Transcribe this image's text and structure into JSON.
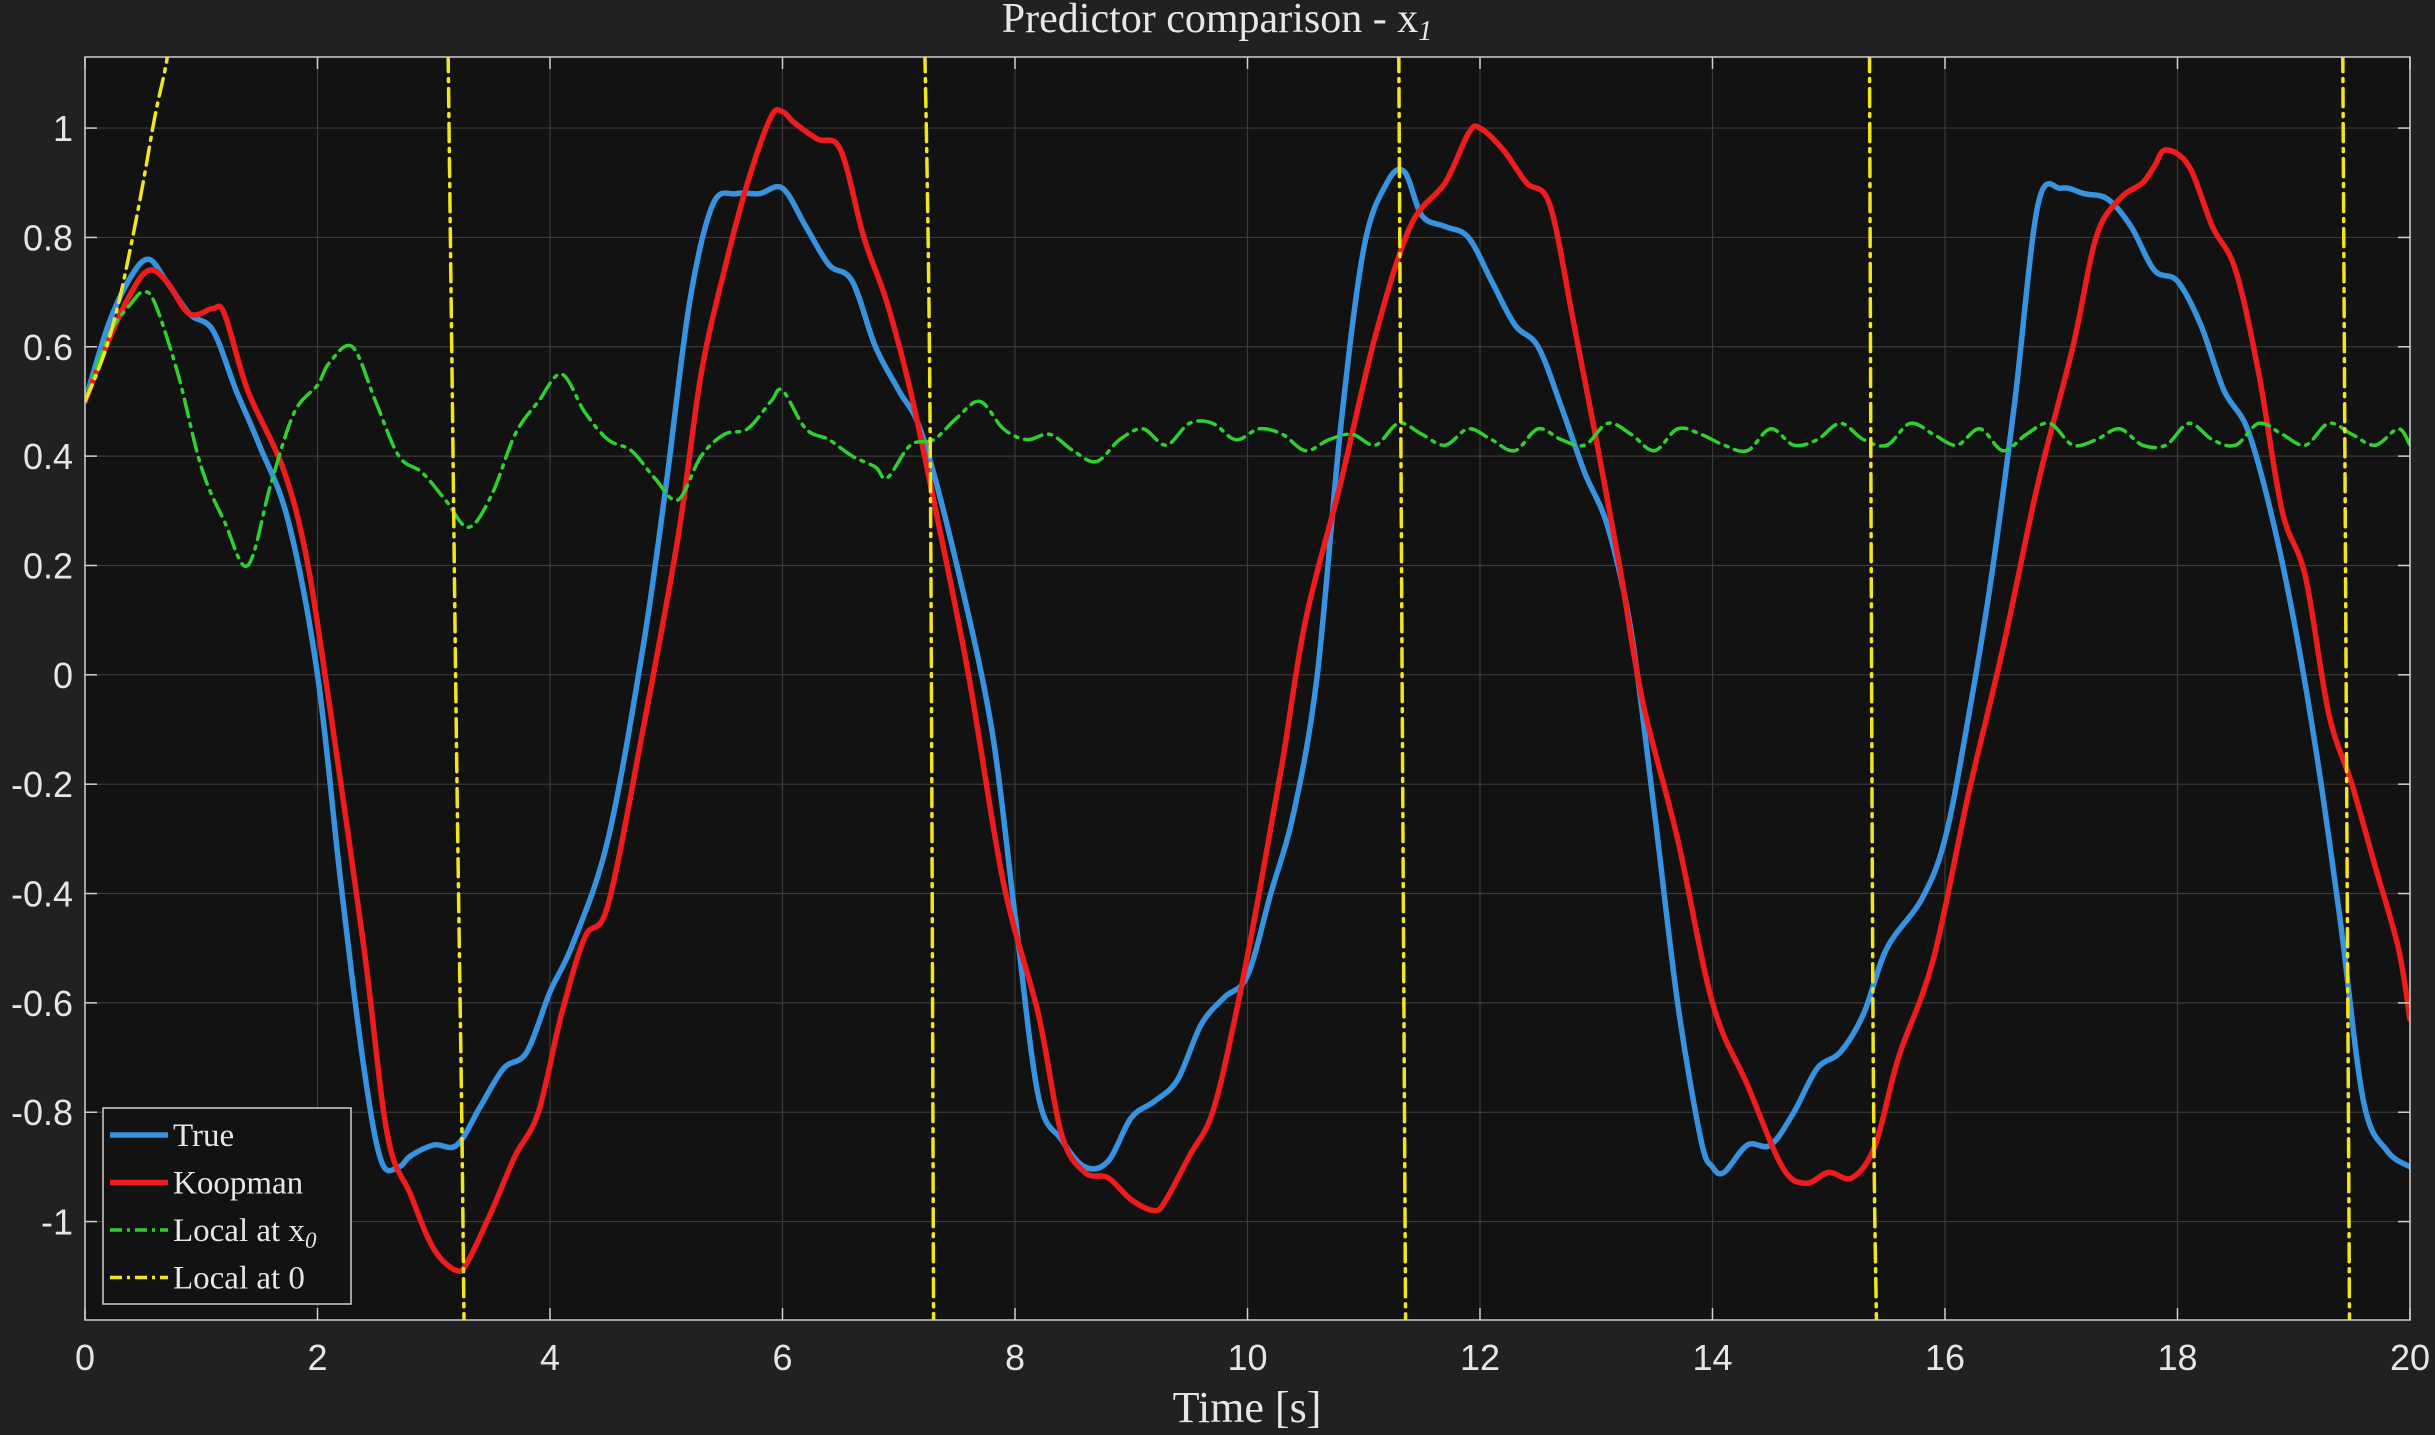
{
  "chart_data": {
    "type": "line",
    "title": "Predictor comparison - x",
    "title_subscript": "1",
    "xlabel": "Time [s]",
    "ylabel": "",
    "xlim": [
      0,
      20
    ],
    "ylim": [
      -1.18,
      1.13
    ],
    "xticks": [
      0,
      2,
      4,
      6,
      8,
      10,
      12,
      14,
      16,
      18,
      20
    ],
    "xtick_labels": [
      "0",
      "2",
      "4",
      "6",
      "8",
      "10",
      "12",
      "14",
      "16",
      "18",
      "20"
    ],
    "yticks": [
      -1,
      -0.8,
      -0.6,
      -0.4,
      -0.2,
      0,
      0.2,
      0.4,
      0.6,
      0.8,
      1
    ],
    "ytick_labels": [
      "-1",
      "-0.8",
      "-0.6",
      "-0.4",
      "-0.2",
      "0",
      "0.2",
      "0.4",
      "0.6",
      "0.8",
      "1"
    ],
    "grid": true,
    "legend_position": "bottom-left",
    "colors": {
      "figure_bg": "#212121",
      "axes_bg": "#121212",
      "grid": "#3a3a3a",
      "axes_edge": "#cfcfcf",
      "text": "#e6e6e6"
    },
    "series": [
      {
        "name": "True",
        "color": "#3792e0",
        "dash": "solid",
        "x": [
          0,
          0.2,
          0.4,
          0.55,
          0.7,
          0.9,
          1.1,
          1.3,
          1.5,
          1.75,
          2.0,
          2.2,
          2.4,
          2.55,
          2.7,
          2.8,
          3.0,
          3.2,
          3.4,
          3.6,
          3.8,
          4.0,
          4.2,
          4.5,
          4.8,
          5.0,
          5.2,
          5.4,
          5.6,
          5.8,
          6.0,
          6.2,
          6.4,
          6.6,
          6.8,
          7.0,
          7.2,
          7.5,
          7.8,
          8.0,
          8.2,
          8.4,
          8.6,
          8.8,
          9.0,
          9.2,
          9.4,
          9.6,
          9.8,
          10.0,
          10.2,
          10.4,
          10.6,
          10.8,
          11.0,
          11.2,
          11.35,
          11.5,
          11.7,
          11.9,
          12.1,
          12.3,
          12.5,
          12.7,
          12.9,
          13.1,
          13.3,
          13.5,
          13.7,
          13.9,
          14.0,
          14.1,
          14.3,
          14.5,
          14.7,
          14.9,
          15.1,
          15.3,
          15.5,
          15.8,
          16.0,
          16.2,
          16.4,
          16.6,
          16.8,
          17.0,
          17.2,
          17.4,
          17.6,
          17.8,
          18.0,
          18.2,
          18.4,
          18.6,
          18.8,
          19.0,
          19.2,
          19.4,
          19.6,
          19.8,
          20.0
        ],
        "y": [
          0.5,
          0.64,
          0.73,
          0.76,
          0.72,
          0.66,
          0.63,
          0.52,
          0.42,
          0.28,
          0.0,
          -0.38,
          -0.72,
          -0.89,
          -0.9,
          -0.88,
          -0.86,
          -0.86,
          -0.79,
          -0.72,
          -0.69,
          -0.58,
          -0.49,
          -0.3,
          0.05,
          0.35,
          0.68,
          0.86,
          0.88,
          0.88,
          0.89,
          0.82,
          0.75,
          0.72,
          0.6,
          0.52,
          0.44,
          0.2,
          -0.1,
          -0.44,
          -0.77,
          -0.85,
          -0.9,
          -0.89,
          -0.81,
          -0.78,
          -0.74,
          -0.64,
          -0.59,
          -0.55,
          -0.4,
          -0.25,
          0.0,
          0.45,
          0.78,
          0.9,
          0.92,
          0.84,
          0.82,
          0.8,
          0.72,
          0.64,
          0.6,
          0.49,
          0.37,
          0.27,
          0.08,
          -0.25,
          -0.6,
          -0.85,
          -0.9,
          -0.91,
          -0.86,
          -0.86,
          -0.8,
          -0.72,
          -0.69,
          -0.62,
          -0.5,
          -0.41,
          -0.3,
          -0.08,
          0.18,
          0.5,
          0.86,
          0.89,
          0.88,
          0.87,
          0.82,
          0.74,
          0.72,
          0.64,
          0.52,
          0.45,
          0.3,
          0.1,
          -0.15,
          -0.45,
          -0.78,
          -0.87,
          -0.9
        ]
      },
      {
        "name": "Koopman",
        "color": "#ee1c1c",
        "dash": "solid",
        "x": [
          0,
          0.2,
          0.4,
          0.55,
          0.7,
          0.9,
          1.1,
          1.2,
          1.4,
          1.7,
          1.9,
          2.1,
          2.4,
          2.6,
          2.8,
          3.0,
          3.2,
          3.3,
          3.5,
          3.7,
          3.9,
          4.1,
          4.3,
          4.5,
          4.8,
          5.1,
          5.3,
          5.5,
          5.7,
          5.9,
          6.0,
          6.1,
          6.3,
          6.5,
          6.7,
          6.9,
          7.1,
          7.3,
          7.6,
          7.9,
          8.2,
          8.4,
          8.6,
          8.8,
          9.0,
          9.2,
          9.3,
          9.5,
          9.7,
          9.9,
          10.1,
          10.3,
          10.5,
          10.8,
          11.1,
          11.4,
          11.7,
          11.9,
          12.0,
          12.2,
          12.4,
          12.6,
          12.8,
          13.0,
          13.2,
          13.4,
          13.7,
          14.0,
          14.3,
          14.6,
          14.8,
          15.0,
          15.2,
          15.4,
          15.6,
          15.9,
          16.2,
          16.5,
          16.8,
          17.1,
          17.3,
          17.5,
          17.7,
          17.8,
          17.9,
          18.1,
          18.3,
          18.5,
          18.7,
          18.9,
          19.1,
          19.3,
          19.5,
          19.7,
          19.9,
          20.0
        ],
        "y": [
          0.5,
          0.61,
          0.7,
          0.74,
          0.72,
          0.66,
          0.67,
          0.66,
          0.52,
          0.38,
          0.22,
          -0.05,
          -0.5,
          -0.84,
          -0.95,
          -1.05,
          -1.09,
          -1.07,
          -0.98,
          -0.88,
          -0.8,
          -0.62,
          -0.48,
          -0.42,
          -0.1,
          0.25,
          0.55,
          0.74,
          0.9,
          1.02,
          1.03,
          1.01,
          0.98,
          0.96,
          0.8,
          0.68,
          0.52,
          0.32,
          0.0,
          -0.38,
          -0.62,
          -0.84,
          -0.91,
          -0.92,
          -0.96,
          -0.98,
          -0.96,
          -0.88,
          -0.8,
          -0.62,
          -0.4,
          -0.16,
          0.1,
          0.35,
          0.62,
          0.82,
          0.9,
          0.99,
          1.0,
          0.96,
          0.9,
          0.86,
          0.65,
          0.43,
          0.2,
          -0.05,
          -0.3,
          -0.6,
          -0.75,
          -0.9,
          -0.93,
          -0.91,
          -0.92,
          -0.86,
          -0.7,
          -0.52,
          -0.22,
          0.05,
          0.35,
          0.6,
          0.8,
          0.87,
          0.9,
          0.93,
          0.96,
          0.93,
          0.82,
          0.74,
          0.55,
          0.3,
          0.18,
          -0.07,
          -0.2,
          -0.35,
          -0.5,
          -0.63
        ]
      },
      {
        "name": "Local at x",
        "name_subscript": "0",
        "color": "#2ed12e",
        "dash": "dashdot",
        "x": [
          0,
          0.2,
          0.4,
          0.5,
          0.6,
          0.8,
          1.0,
          1.2,
          1.4,
          1.6,
          1.8,
          2.0,
          2.1,
          2.3,
          2.5,
          2.7,
          2.9,
          3.1,
          3.3,
          3.5,
          3.7,
          3.9,
          4.1,
          4.3,
          4.5,
          4.7,
          4.9,
          5.1,
          5.3,
          5.5,
          5.7,
          5.9,
          6.0,
          6.2,
          6.4,
          6.6,
          6.8,
          6.9,
          7.1,
          7.3,
          7.5,
          7.7,
          7.9,
          8.1,
          8.3,
          8.5,
          8.7,
          8.9,
          9.1,
          9.3,
          9.5,
          9.7,
          9.9,
          10.1,
          10.3,
          10.5,
          10.7,
          10.9,
          11.1,
          11.3,
          11.5,
          11.7,
          11.9,
          12.1,
          12.3,
          12.5,
          12.7,
          12.9,
          13.1,
          13.3,
          13.5,
          13.7,
          13.9,
          14.1,
          14.3,
          14.5,
          14.7,
          14.9,
          15.1,
          15.3,
          15.5,
          15.7,
          15.9,
          16.1,
          16.3,
          16.5,
          16.7,
          16.9,
          17.1,
          17.3,
          17.5,
          17.7,
          17.9,
          18.1,
          18.3,
          18.5,
          18.7,
          18.9,
          19.1,
          19.3,
          19.5,
          19.7,
          19.9,
          20.0
        ],
        "y": [
          0.5,
          0.62,
          0.68,
          0.7,
          0.68,
          0.55,
          0.38,
          0.28,
          0.2,
          0.35,
          0.48,
          0.53,
          0.57,
          0.6,
          0.5,
          0.4,
          0.37,
          0.32,
          0.27,
          0.33,
          0.44,
          0.5,
          0.55,
          0.48,
          0.43,
          0.41,
          0.36,
          0.32,
          0.4,
          0.44,
          0.45,
          0.5,
          0.52,
          0.45,
          0.43,
          0.4,
          0.38,
          0.36,
          0.42,
          0.43,
          0.47,
          0.5,
          0.45,
          0.43,
          0.44,
          0.41,
          0.39,
          0.43,
          0.45,
          0.42,
          0.46,
          0.46,
          0.43,
          0.45,
          0.44,
          0.41,
          0.43,
          0.44,
          0.42,
          0.46,
          0.44,
          0.42,
          0.45,
          0.43,
          0.41,
          0.45,
          0.43,
          0.42,
          0.46,
          0.44,
          0.41,
          0.45,
          0.44,
          0.42,
          0.41,
          0.45,
          0.42,
          0.43,
          0.46,
          0.43,
          0.42,
          0.46,
          0.44,
          0.42,
          0.45,
          0.41,
          0.44,
          0.46,
          0.42,
          0.43,
          0.45,
          0.42,
          0.42,
          0.46,
          0.43,
          0.42,
          0.46,
          0.44,
          0.42,
          0.46,
          0.44,
          0.42,
          0.45,
          0.42
        ]
      },
      {
        "name": "Local at 0",
        "color": "#f2e51f",
        "dash": "dashdot",
        "x": [
          0,
          0.1,
          0.2,
          0.3,
          0.4,
          0.5,
          0.6,
          0.7,
          0.75,
          null,
          3.12,
          3.16,
          3.2,
          3.24,
          3.26,
          null,
          7.22,
          7.27,
          7.3,
          null,
          11.3,
          11.33,
          11.36,
          null,
          15.35,
          15.38,
          15.41,
          null,
          19.42,
          19.45,
          19.48
        ],
        "y": [
          0.5,
          0.55,
          0.61,
          0.69,
          0.79,
          0.9,
          1.02,
          1.12,
          1.2,
          null,
          1.2,
          0.5,
          -0.2,
          -0.8,
          -1.18,
          null,
          1.2,
          0.45,
          -1.18,
          null,
          1.2,
          0.0,
          -1.18,
          null,
          1.2,
          -0.6,
          -1.18,
          null,
          1.2,
          0.0,
          -1.18
        ]
      }
    ]
  }
}
